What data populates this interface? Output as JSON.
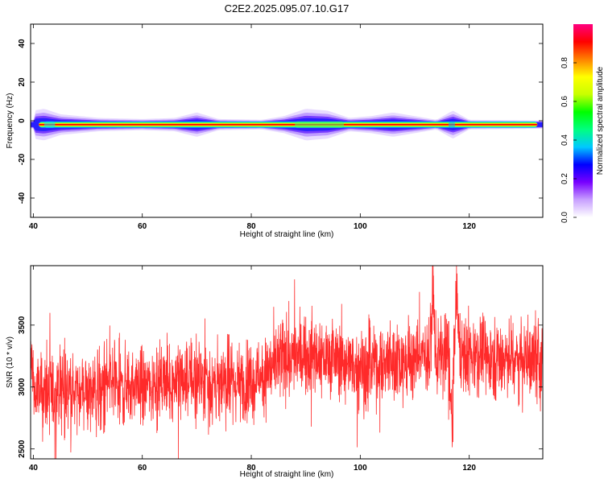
{
  "title": "C2E2.2025.095.07.10.G17",
  "colors": {
    "snr_line": "#ff2a2a",
    "ridge": "#e00000"
  },
  "chart_data": [
    {
      "type": "heatmap",
      "xlabel": "Height of straight line (km)",
      "ylabel": "Frequency (Hz)",
      "xlim": [
        39.5,
        133.5
      ],
      "ylim": [
        -50,
        50
      ],
      "xticks": [
        40,
        60,
        80,
        100,
        120
      ],
      "yticks": [
        -40,
        -20,
        0,
        20,
        40
      ],
      "xtick_labels": [
        "40",
        "60",
        "80",
        "100",
        "120"
      ],
      "ytick_labels": [
        "-40",
        "-20",
        "0",
        "20",
        "40"
      ],
      "ridge_frequency_hz": -2,
      "colorbar": {
        "label": "Normalized spectral amplitude",
        "range": [
          0,
          1
        ],
        "ticks": [
          0.0,
          0.2,
          0.4,
          0.6,
          0.8
        ],
        "tick_labels": [
          "0.0",
          "0.2",
          "0.4",
          "0.6",
          "0.8"
        ],
        "colormap": [
          "#ffffff",
          "#c8a0ff",
          "#7800ff",
          "#0000ff",
          "#00c8ff",
          "#00ff80",
          "#00ff00",
          "#c8ff00",
          "#ffff00",
          "#ff8000",
          "#ff0000",
          "#ff0080"
        ]
      },
      "spread_profile": [
        {
          "x": 40,
          "width_hz": 3.5
        },
        {
          "x": 42,
          "width_hz": 4.0
        },
        {
          "x": 45,
          "width_hz": 2.5
        },
        {
          "x": 52,
          "width_hz": 1.5
        },
        {
          "x": 60,
          "width_hz": 1.2
        },
        {
          "x": 66,
          "width_hz": 1.5
        },
        {
          "x": 70,
          "width_hz": 3.0
        },
        {
          "x": 74,
          "width_hz": 1.2
        },
        {
          "x": 82,
          "width_hz": 1.0
        },
        {
          "x": 86,
          "width_hz": 2.0
        },
        {
          "x": 90,
          "width_hz": 4.0
        },
        {
          "x": 94,
          "width_hz": 3.5
        },
        {
          "x": 98,
          "width_hz": 1.5
        },
        {
          "x": 102,
          "width_hz": 2.0
        },
        {
          "x": 106,
          "width_hz": 3.0
        },
        {
          "x": 110,
          "width_hz": 2.0
        },
        {
          "x": 114,
          "width_hz": 1.0
        },
        {
          "x": 117,
          "width_hz": 3.5
        },
        {
          "x": 120,
          "width_hz": 1.0
        },
        {
          "x": 133,
          "width_hz": 0.8
        }
      ]
    },
    {
      "type": "line",
      "xlabel": "Height of straight line (km)",
      "ylabel": "SNR (10 * v/v)",
      "xlim": [
        39.5,
        133.5
      ],
      "ylim": [
        2420,
        3980
      ],
      "xticks": [
        40,
        60,
        80,
        100,
        120
      ],
      "yticks": [
        2500,
        3000,
        3500
      ],
      "xtick_labels": [
        "40",
        "60",
        "80",
        "100",
        "120"
      ],
      "ytick_labels": [
        "2500",
        "3000",
        "3500"
      ],
      "series": [
        {
          "color": "#ff2a2a",
          "trend": [
            {
              "x": 40,
              "y": 2950
            },
            {
              "x": 50,
              "y": 2960
            },
            {
              "x": 55,
              "y": 3000
            },
            {
              "x": 60,
              "y": 3020
            },
            {
              "x": 65,
              "y": 3050
            },
            {
              "x": 70,
              "y": 3070
            },
            {
              "x": 75,
              "y": 3000
            },
            {
              "x": 80,
              "y": 3050
            },
            {
              "x": 85,
              "y": 3200
            },
            {
              "x": 90,
              "y": 3250
            },
            {
              "x": 95,
              "y": 3230
            },
            {
              "x": 100,
              "y": 3150
            },
            {
              "x": 105,
              "y": 3200
            },
            {
              "x": 110,
              "y": 3220
            },
            {
              "x": 113,
              "y": 3300
            },
            {
              "x": 116,
              "y": 3250
            },
            {
              "x": 118,
              "y": 3300
            },
            {
              "x": 120,
              "y": 3280
            },
            {
              "x": 125,
              "y": 3250
            },
            {
              "x": 130,
              "y": 3220
            },
            {
              "x": 133,
              "y": 3200
            }
          ],
          "noise_amplitude": 150,
          "features": [
            {
              "x": 116.8,
              "y": 2580
            },
            {
              "x": 117.7,
              "y": 3900
            },
            {
              "x": 113.3,
              "y": 3950
            }
          ]
        }
      ]
    }
  ]
}
